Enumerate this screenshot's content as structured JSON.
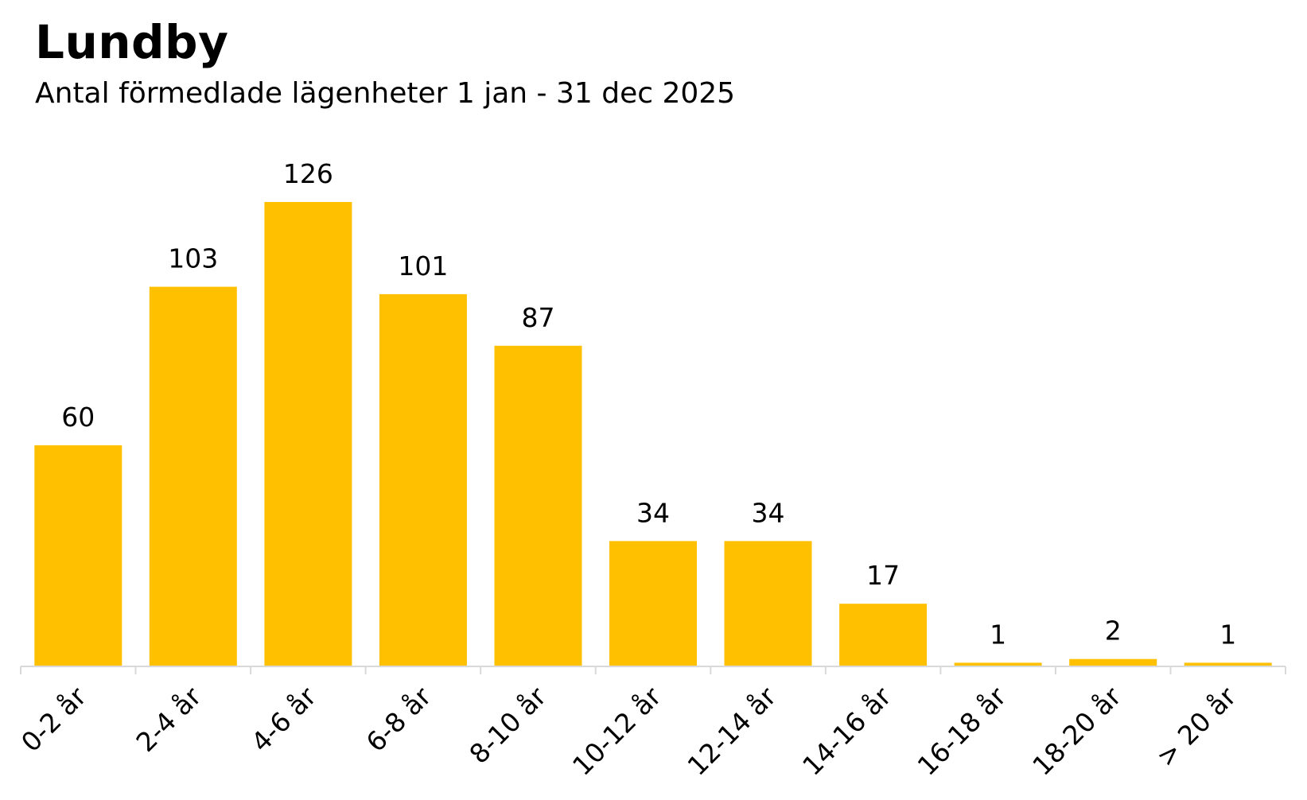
{
  "chart_data": {
    "type": "bar",
    "title": "Lundby",
    "subtitle": "Antal förmedlade lägenheter 1 jan - 31 dec 2025",
    "categories": [
      "0-2 år",
      "2-4 år",
      "4-6 år",
      "6-8 år",
      "8-10 år",
      "10-12 år",
      "12-14 år",
      "14-16 år",
      "16-18 år",
      "18-20 år",
      "> 20 år"
    ],
    "values": [
      60,
      103,
      126,
      101,
      87,
      34,
      34,
      17,
      1,
      2,
      1
    ],
    "data_labels": [
      "60",
      "103",
      "126",
      "101",
      "87",
      "34",
      "34",
      "17",
      "1",
      "2",
      "1"
    ],
    "ylim": [
      0,
      126
    ],
    "grid": false,
    "legend": "none",
    "bar_color": "#FFC000",
    "axis_color": "#D9D9D9"
  }
}
